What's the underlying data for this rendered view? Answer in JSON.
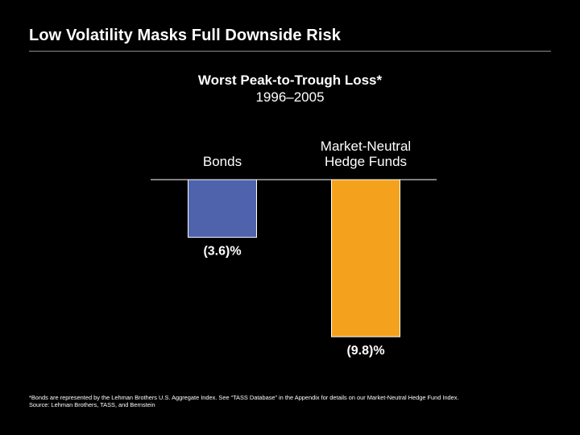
{
  "slide": {
    "title": "Low Volatility Masks Full Downside Risk"
  },
  "chart_data": {
    "type": "bar",
    "title": "Worst Peak-to-Trough Loss*",
    "subtitle": "1996–2005",
    "categories": [
      [
        "Bonds"
      ],
      [
        "Market-Neutral",
        "Hedge Funds"
      ]
    ],
    "values": [
      -3.6,
      -9.8
    ],
    "value_labels": [
      "(3.6)%",
      "(9.8)%"
    ],
    "colors": [
      "#4f63ad",
      "#f4a21e"
    ],
    "ylim": [
      -10,
      0
    ],
    "xlabel": "",
    "ylabel": "",
    "grid": false,
    "legend": "none"
  },
  "footnote": {
    "line1": "*Bonds are represented by the Lehman Brothers U.S. Aggregate Index. See “TASS Database” in the Appendix for details on our Market-Neutral Hedge Fund Index.",
    "line2": "Source: Lehman Brothers, TASS, and Bernstein"
  }
}
